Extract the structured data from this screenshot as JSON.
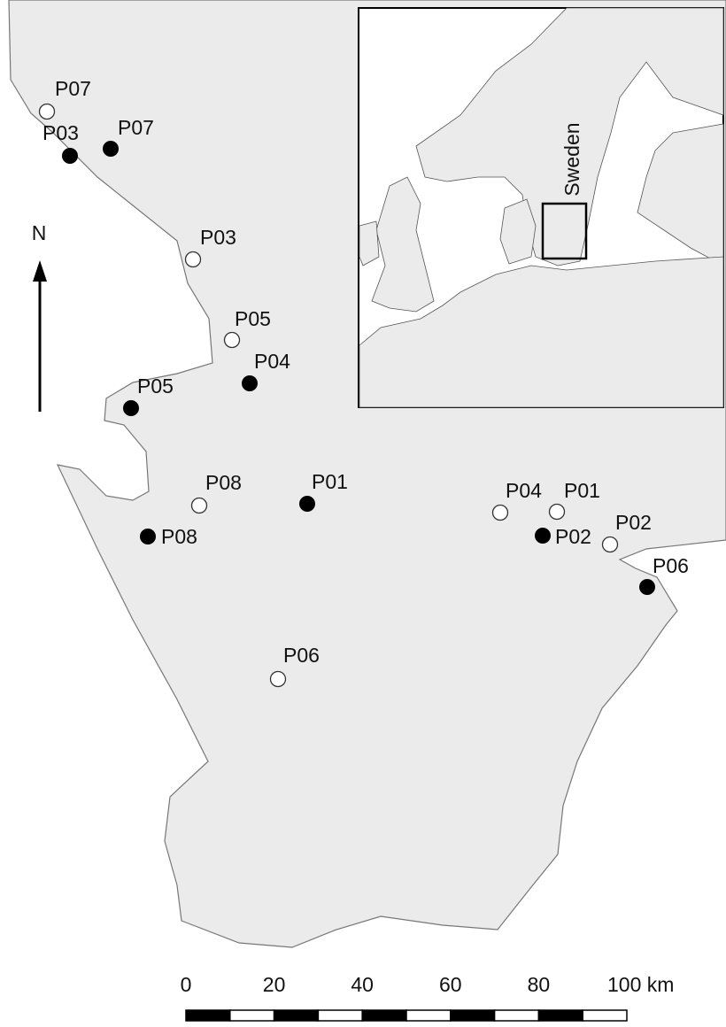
{
  "north": "N",
  "inset": {
    "country": "Sweden"
  },
  "sites_open": [
    "P07",
    "P03",
    "P05",
    "P08",
    "P04",
    "P01",
    "P02",
    "P06"
  ],
  "sites_filled": [
    "P03",
    "P07",
    "P04",
    "P05",
    "P01",
    "P08",
    "P02",
    "P06"
  ],
  "scale_labels": [
    "0",
    "20",
    "40",
    "60",
    "80",
    "100 km"
  ]
}
